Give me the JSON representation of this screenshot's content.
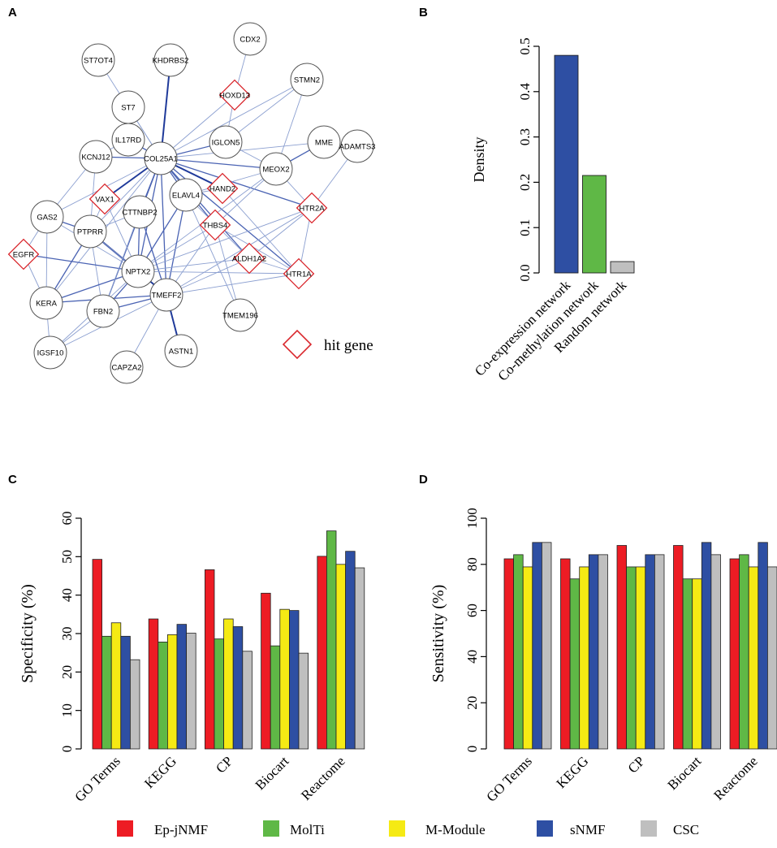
{
  "panels": {
    "a": {
      "letter": "A",
      "legend_label": "hit gene",
      "nodes": [
        {
          "id": "CDX2",
          "label": "CDX2",
          "hit": false
        },
        {
          "id": "ST7OT4",
          "label": "ST7OT4",
          "hit": false
        },
        {
          "id": "KHDRBS2",
          "label": "KHDRBS2",
          "hit": false
        },
        {
          "id": "HOXD13",
          "label": "HOXD13",
          "hit": true
        },
        {
          "id": "STMN2",
          "label": "STMN2",
          "hit": false
        },
        {
          "id": "ST7",
          "label": "ST7",
          "hit": false
        },
        {
          "id": "IL17RD",
          "label": "IL17RD",
          "hit": false
        },
        {
          "id": "IGLON5",
          "label": "IGLON5",
          "hit": false
        },
        {
          "id": "MME",
          "label": "MME",
          "hit": false
        },
        {
          "id": "ADAMTS3",
          "label": "ADAMTS3",
          "hit": false
        },
        {
          "id": "KCNJ12",
          "label": "KCNJ12",
          "hit": false
        },
        {
          "id": "COL25A1",
          "label": "COL25A1",
          "hit": false
        },
        {
          "id": "MEOX2",
          "label": "MEOX2",
          "hit": false
        },
        {
          "id": "HAND2",
          "label": "HAND2",
          "hit": true
        },
        {
          "id": "VAX1",
          "label": "VAX1",
          "hit": true
        },
        {
          "id": "ELAVL4",
          "label": "ELAVL4",
          "hit": false
        },
        {
          "id": "HTR2A",
          "label": "HTR2A",
          "hit": true
        },
        {
          "id": "GAS2",
          "label": "GAS2",
          "hit": false
        },
        {
          "id": "CTTNBP2",
          "label": "CTTNBP2",
          "hit": false
        },
        {
          "id": "THBS4",
          "label": "THBS4",
          "hit": true
        },
        {
          "id": "PTPRR",
          "label": "PTPRR",
          "hit": false
        },
        {
          "id": "EGFR",
          "label": "EGFR",
          "hit": true
        },
        {
          "id": "ALDH1A2",
          "label": "ALDH1A2",
          "hit": true
        },
        {
          "id": "HTR1A",
          "label": "HTR1A",
          "hit": true
        },
        {
          "id": "NPTX2",
          "label": "NPTX2",
          "hit": false
        },
        {
          "id": "KERA",
          "label": "KERA",
          "hit": false
        },
        {
          "id": "TMEFF2",
          "label": "TMEFF2",
          "hit": false
        },
        {
          "id": "FBN2",
          "label": "FBN2",
          "hit": false
        },
        {
          "id": "TMEM196",
          "label": "TMEM196",
          "hit": false
        },
        {
          "id": "IGSF10",
          "label": "IGSF10",
          "hit": false
        },
        {
          "id": "ASTN1",
          "label": "ASTN1",
          "hit": false
        },
        {
          "id": "CAPZA2",
          "label": "CAPZA2",
          "hit": false
        }
      ],
      "edges": [
        [
          "CDX2",
          "HOXD13",
          1
        ],
        [
          "KHDRBS2",
          "COL25A1",
          3
        ],
        [
          "ST7OT4",
          "COL25A1",
          1
        ],
        [
          "ST7",
          "COL25A1",
          1
        ],
        [
          "IL17RD",
          "COL25A1",
          2
        ],
        [
          "HOXD13",
          "COL25A1",
          1
        ],
        [
          "HOXD13",
          "IGLON5",
          1
        ],
        [
          "STMN2",
          "COL25A1",
          1
        ],
        [
          "STMN2",
          "IGLON5",
          1
        ],
        [
          "STMN2",
          "MEOX2",
          1
        ],
        [
          "IGLON5",
          "COL25A1",
          2
        ],
        [
          "IGLON5",
          "MEOX2",
          1
        ],
        [
          "MME",
          "MEOX2",
          2
        ],
        [
          "MME",
          "COL25A1",
          1
        ],
        [
          "ADAMTS3",
          "HTR2A",
          1
        ],
        [
          "KCNJ12",
          "COL25A1",
          2
        ],
        [
          "KCNJ12",
          "GAS2",
          1
        ],
        [
          "KCNJ12",
          "PTPRR",
          1
        ],
        [
          "COL25A1",
          "MEOX2",
          2
        ],
        [
          "COL25A1",
          "HAND2",
          3
        ],
        [
          "COL25A1",
          "VAX1",
          3
        ],
        [
          "COL25A1",
          "ELAVL4",
          2
        ],
        [
          "COL25A1",
          "CTTNBP2",
          2
        ],
        [
          "COL25A1",
          "THBS4",
          2
        ],
        [
          "COL25A1",
          "NPTX2",
          2
        ],
        [
          "COL25A1",
          "TMEFF2",
          2
        ],
        [
          "COL25A1",
          "HTR2A",
          2
        ],
        [
          "COL25A1",
          "ALDH1A2",
          2
        ],
        [
          "COL25A1",
          "HTR1A",
          2
        ],
        [
          "COL25A1",
          "PTPRR",
          1
        ],
        [
          "COL25A1",
          "GAS2",
          1
        ],
        [
          "COL25A1",
          "KERA",
          1
        ],
        [
          "COL25A1",
          "FBN2",
          2
        ],
        [
          "MEOX2",
          "ELAVL4",
          1
        ],
        [
          "MEOX2",
          "HTR2A",
          1
        ],
        [
          "MEOX2",
          "THBS4",
          1
        ],
        [
          "MEOX2",
          "NPTX2",
          1
        ],
        [
          "HAND2",
          "ELAVL4",
          1
        ],
        [
          "ELAVL4",
          "NPTX2",
          2
        ],
        [
          "ELAVL4",
          "TMEFF2",
          2
        ],
        [
          "ELAVL4",
          "ALDH1A2",
          1
        ],
        [
          "ELAVL4",
          "TMEM196",
          1
        ],
        [
          "HTR2A",
          "HTR1A",
          1
        ],
        [
          "HTR2A",
          "NPTX2",
          1
        ],
        [
          "HTR2A",
          "ALDH1A2",
          1
        ],
        [
          "HTR2A",
          "TMEFF2",
          1
        ],
        [
          "GAS2",
          "PTPRR",
          2
        ],
        [
          "GAS2",
          "KERA",
          1
        ],
        [
          "GAS2",
          "EGFR",
          1
        ],
        [
          "GAS2",
          "NPTX2",
          1
        ],
        [
          "VAX1",
          "PTPRR",
          1
        ],
        [
          "CTTNBP2",
          "NPTX2",
          2
        ],
        [
          "CTTNBP2",
          "TMEFF2",
          2
        ],
        [
          "CTTNBP2",
          "PTPRR",
          1
        ],
        [
          "PTPRR",
          "NPTX2",
          3
        ],
        [
          "PTPRR",
          "KERA",
          2
        ],
        [
          "PTPRR",
          "FBN2",
          1
        ],
        [
          "PTPRR",
          "TMEFF2",
          1
        ],
        [
          "EGFR",
          "NPTX2",
          2
        ],
        [
          "EGFR",
          "KERA",
          1
        ],
        [
          "NPTX2",
          "TMEFF2",
          3
        ],
        [
          "NPTX2",
          "KERA",
          2
        ],
        [
          "NPTX2",
          "FBN2",
          2
        ],
        [
          "NPTX2",
          "ALDH1A2",
          1
        ],
        [
          "NPTX2",
          "HTR1A",
          1
        ],
        [
          "NPTX2",
          "THBS4",
          1
        ],
        [
          "NPTX2",
          "IGSF10",
          1
        ],
        [
          "KERA",
          "TMEFF2",
          2
        ],
        [
          "KERA",
          "IGSF10",
          1
        ],
        [
          "TMEFF2",
          "FBN2",
          2
        ],
        [
          "TMEFF2",
          "ASTN1",
          3
        ],
        [
          "TMEFF2",
          "IGSF10",
          1
        ],
        [
          "TMEFF2",
          "CAPZA2",
          1
        ],
        [
          "TMEFF2",
          "HTR1A",
          1
        ],
        [
          "TMEFF2",
          "ALDH1A2",
          1
        ],
        [
          "TMEFF2",
          "THBS4",
          1
        ],
        [
          "THBS4",
          "TMEM196",
          1
        ],
        [
          "THBS4",
          "HTR1A",
          1
        ],
        [
          "ALDH1A2",
          "HTR1A",
          1
        ],
        [
          "FBN2",
          "IGSF10",
          1
        ],
        [
          "CTTNBP2",
          "FBN2",
          1
        ],
        [
          "IL17RD",
          "KCNJ12",
          1
        ],
        [
          "HAND2",
          "HTR1A",
          1
        ],
        [
          "VAX1",
          "NPTX2",
          1
        ]
      ]
    },
    "b": {
      "letter": "B"
    },
    "c": {
      "letter": "C"
    },
    "d": {
      "letter": "D"
    }
  },
  "legend": {
    "items": [
      {
        "label": "Ep-jNMF",
        "color": "#ed1c24"
      },
      {
        "label": "MolTi",
        "color": "#5fb846"
      },
      {
        "label": "M-Module",
        "color": "#f5ea14"
      },
      {
        "label": "sNMF",
        "color": "#2e4fa3"
      },
      {
        "label": "CSC",
        "color": "#bfbfbf"
      }
    ]
  },
  "chart_data": [
    {
      "panel": "B",
      "type": "bar",
      "categories": [
        "Co-expression network",
        "Co-methylation network",
        "Random network"
      ],
      "values": [
        0.48,
        0.215,
        0.025
      ],
      "colors": [
        "#2e4fa3",
        "#5fb846",
        "#bfbfbf"
      ],
      "title": "",
      "xlabel": "",
      "ylabel": "Density",
      "ylim": [
        0,
        0.5
      ],
      "yticks": [
        0.0,
        0.1,
        0.2,
        0.3,
        0.4,
        0.5
      ],
      "ytick_labels": [
        "0.0",
        "0.1",
        "0.2",
        "0.3",
        "0.4",
        "0.5"
      ]
    },
    {
      "panel": "C",
      "type": "bar",
      "categories": [
        "GO Terms",
        "KEGG",
        "CP",
        "Biocart",
        "Reactome"
      ],
      "series": [
        {
          "name": "Ep-jNMF",
          "values": [
            49.3,
            33.8,
            46.6,
            40.5,
            50.1
          ]
        },
        {
          "name": "MolTi",
          "values": [
            29.3,
            27.8,
            28.6,
            26.8,
            56.7
          ]
        },
        {
          "name": "M-Module",
          "values": [
            32.8,
            29.7,
            33.8,
            36.3,
            48.0
          ]
        },
        {
          "name": "sNMF",
          "values": [
            29.3,
            32.4,
            31.8,
            36.0,
            51.4
          ]
        },
        {
          "name": "CSC",
          "values": [
            23.2,
            30.1,
            25.4,
            24.9,
            47.1
          ]
        }
      ],
      "title": "",
      "xlabel": "",
      "ylabel": "Specificity (%)",
      "ylim": [
        0,
        60
      ],
      "yticks": [
        0,
        10,
        20,
        30,
        40,
        50,
        60
      ],
      "ytick_labels": [
        "0",
        "10",
        "20",
        "30",
        "40",
        "50",
        "60"
      ]
    },
    {
      "panel": "D",
      "type": "bar",
      "categories": [
        "GO Terms",
        "KEGG",
        "CP",
        "Biocart",
        "Reactome"
      ],
      "series": [
        {
          "name": "Ep-jNMF",
          "values": [
            82.4,
            82.4,
            88.2,
            88.2,
            82.4
          ]
        },
        {
          "name": "MolTi",
          "values": [
            84.2,
            73.7,
            78.9,
            73.7,
            84.2
          ]
        },
        {
          "name": "M-Module",
          "values": [
            78.9,
            78.9,
            78.9,
            73.7,
            78.9
          ]
        },
        {
          "name": "sNMF",
          "values": [
            89.5,
            84.2,
            84.2,
            89.5,
            89.5
          ]
        },
        {
          "name": "CSC",
          "values": [
            89.5,
            84.2,
            84.2,
            84.2,
            78.9
          ]
        }
      ],
      "title": "",
      "xlabel": "",
      "ylabel": "Sensitivity (%)",
      "ylim": [
        0,
        100
      ],
      "yticks": [
        0,
        20,
        40,
        60,
        80,
        100
      ],
      "ytick_labels": [
        "0",
        "20",
        "40",
        "60",
        "80",
        "100"
      ]
    }
  ]
}
